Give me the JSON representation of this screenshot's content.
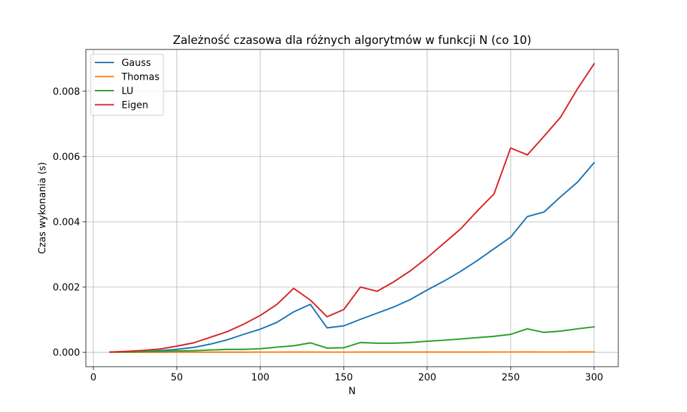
{
  "chart_data": {
    "type": "line",
    "title": "Zależność czasowa dla różnych algorytmów w funkcji N (co 10)",
    "xlabel": "N",
    "ylabel": "Czas wykonania (s)",
    "xlim": [
      -4.5,
      314.5
    ],
    "ylim": [
      -0.00044,
      0.00928
    ],
    "xticks": [
      0,
      50,
      100,
      150,
      200,
      250,
      300
    ],
    "xtick_labels": [
      "0",
      "50",
      "100",
      "150",
      "200",
      "250",
      "300"
    ],
    "yticks": [
      0,
      0.002,
      0.004,
      0.006,
      0.008
    ],
    "ytick_labels": [
      "0.000",
      "0.002",
      "0.004",
      "0.006",
      "0.008"
    ],
    "grid": true,
    "legend_position": "upper left",
    "x": [
      10,
      20,
      30,
      40,
      50,
      60,
      70,
      80,
      90,
      100,
      110,
      120,
      130,
      140,
      150,
      160,
      170,
      180,
      190,
      200,
      210,
      220,
      230,
      240,
      250,
      260,
      270,
      280,
      290,
      300
    ],
    "series": [
      {
        "name": "Gauss",
        "color": "#1f77b4",
        "values": [
          1e-05,
          1e-05,
          2e-05,
          5e-05,
          9e-05,
          0.00015,
          0.00025,
          0.00038,
          0.00055,
          0.00071,
          0.00092,
          0.00124,
          0.00147,
          0.00075,
          0.00081,
          0.00101,
          0.0012,
          0.00139,
          0.00162,
          0.00191,
          0.00218,
          0.00248,
          0.00281,
          0.00317,
          0.00353,
          0.00416,
          0.0043,
          0.00477,
          0.00521,
          0.00581
        ]
      },
      {
        "name": "Thomas",
        "color": "#ff7f0e",
        "values": [
          3e-06,
          3e-06,
          4e-06,
          4e-06,
          5e-06,
          5e-06,
          6e-06,
          6e-06,
          6e-06,
          7e-06,
          7e-06,
          8e-06,
          8e-06,
          7e-06,
          7e-06,
          8e-06,
          8e-06,
          8e-06,
          8e-06,
          9e-06,
          9e-06,
          9e-06,
          9e-06,
          1e-05,
          1e-05,
          1.1e-05,
          1e-05,
          1e-05,
          1.1e-05,
          1.1e-05
        ]
      },
      {
        "name": "LU",
        "color": "#2ca02c",
        "values": [
          1e-05,
          1e-05,
          2e-05,
          3e-05,
          4e-05,
          5e-05,
          7e-05,
          9e-05,
          9e-05,
          0.00011,
          0.00016,
          0.0002,
          0.00029,
          0.00013,
          0.00014,
          0.0003,
          0.00028,
          0.00028,
          0.0003,
          0.00034,
          0.00037,
          0.00041,
          0.00045,
          0.00049,
          0.00055,
          0.00072,
          0.00061,
          0.00065,
          0.00072,
          0.00078
        ]
      },
      {
        "name": "Eigen",
        "color": "#d62728",
        "values": [
          1e-05,
          3e-05,
          6e-05,
          0.0001,
          0.00019,
          0.00029,
          0.00046,
          0.00063,
          0.00086,
          0.00113,
          0.00147,
          0.00196,
          0.0016,
          0.00109,
          0.00131,
          0.002,
          0.00187,
          0.00216,
          0.0025,
          0.0029,
          0.00334,
          0.00378,
          0.00433,
          0.00485,
          0.00626,
          0.00605,
          0.00662,
          0.00721,
          0.00807,
          0.00884
        ]
      }
    ]
  }
}
